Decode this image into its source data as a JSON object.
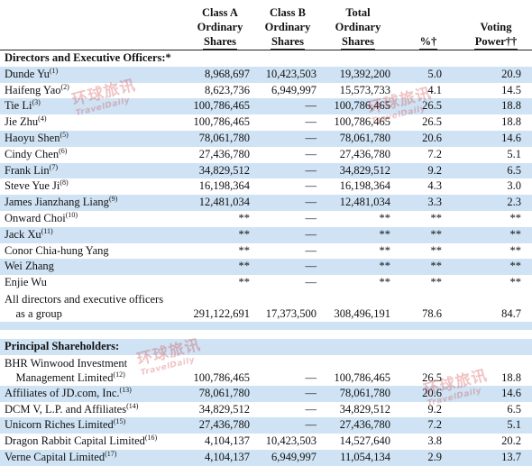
{
  "headers": {
    "class_a": [
      "Class A",
      "Ordinary",
      "Shares"
    ],
    "class_b": [
      "Class B",
      "Ordinary",
      "Shares"
    ],
    "total": [
      "Total",
      "Ordinary",
      "Shares"
    ],
    "pct": "%†",
    "voting": [
      "Voting",
      "Power††"
    ]
  },
  "sections": {
    "directors": "Directors and Executive Officers:*",
    "principal": "Principal Shareholders:"
  },
  "directors": [
    {
      "name": "Dunde Yu",
      "fn": "(1)",
      "a": "8,968,697",
      "b": "10,423,503",
      "total": "19,392,200",
      "pct": "5.0",
      "vote": "20.9"
    },
    {
      "name": "Haifeng Yao",
      "fn": "(2)",
      "a": "8,623,736",
      "b": "6,949,997",
      "total": "15,573,733",
      "pct": "4.1",
      "vote": "14.5"
    },
    {
      "name": "Tie Li",
      "fn": "(3)",
      "a": "100,786,465",
      "b": "—",
      "total": "100,786,465",
      "pct": "26.5",
      "vote": "18.8"
    },
    {
      "name": "Jie Zhu",
      "fn": "(4)",
      "a": "100,786,465",
      "b": "—",
      "total": "100,786,465",
      "pct": "26.5",
      "vote": "18.8"
    },
    {
      "name": "Haoyu Shen",
      "fn": "(5)",
      "a": "78,061,780",
      "b": "—",
      "total": "78,061,780",
      "pct": "20.6",
      "vote": "14.6"
    },
    {
      "name": "Cindy Chen",
      "fn": "(6)",
      "a": "27,436,780",
      "b": "—",
      "total": "27,436,780",
      "pct": "7.2",
      "vote": "5.1"
    },
    {
      "name": "Frank Lin",
      "fn": "(7)",
      "a": "34,829,512",
      "b": "—",
      "total": "34,829,512",
      "pct": "9.2",
      "vote": "6.5"
    },
    {
      "name": "Steve Yue Ji",
      "fn": "(8)",
      "a": "16,198,364",
      "b": "—",
      "total": "16,198,364",
      "pct": "4.3",
      "vote": "3.0"
    },
    {
      "name": "James Jianzhang Liang",
      "fn": "(9)",
      "a": "12,481,034",
      "b": "—",
      "total": "12,481,034",
      "pct": "3.3",
      "vote": "2.3"
    },
    {
      "name": "Onward Choi",
      "fn": "(10)",
      "a": "**",
      "b": "—",
      "total": "**",
      "pct": "**",
      "vote": "**"
    },
    {
      "name": "Jack Xu",
      "fn": "(11)",
      "a": "**",
      "b": "—",
      "total": "**",
      "pct": "**",
      "vote": "**"
    },
    {
      "name": "Conor Chia-hung Yang",
      "fn": "",
      "a": "**",
      "b": "—",
      "total": "**",
      "pct": "**",
      "vote": "**"
    },
    {
      "name": "Wei Zhang",
      "fn": "",
      "a": "**",
      "b": "—",
      "total": "**",
      "pct": "**",
      "vote": "**"
    },
    {
      "name": "Enjie Wu",
      "fn": "",
      "a": "**",
      "b": "—",
      "total": "**",
      "pct": "**",
      "vote": "**"
    }
  ],
  "group_total": {
    "name_line1": "All directors and executive officers",
    "name_line2": "as a group",
    "a": "291,122,691",
    "b": "17,373,500",
    "total": "308,496,191",
    "pct": "78.6",
    "vote": "84.7"
  },
  "principal": [
    {
      "name_line1": "BHR Winwood Investment",
      "name": "Management Limited",
      "fn": "(12)",
      "a": "100,786,465",
      "b": "—",
      "total": "100,786,465",
      "pct": "26.5",
      "vote": "18.8"
    },
    {
      "name": "Affiliates of JD.com, Inc.",
      "fn": "(13)",
      "a": "78,061,780",
      "b": "—",
      "total": "78,061,780",
      "pct": "20.6",
      "vote": "14.6"
    },
    {
      "name": "DCM V, L.P. and Affiliates",
      "fn": "(14)",
      "a": "34,829,512",
      "b": "—",
      "total": "34,829,512",
      "pct": "9.2",
      "vote": "6.5"
    },
    {
      "name": "Unicorn Riches Limited",
      "fn": "(15)",
      "a": "27,436,780",
      "b": "—",
      "total": "27,436,780",
      "pct": "7.2",
      "vote": "5.1"
    },
    {
      "name": "Dragon Rabbit Capital Limited",
      "fn": "(16)",
      "a": "4,104,137",
      "b": "10,423,503",
      "total": "14,527,640",
      "pct": "3.8",
      "vote": "20.2"
    },
    {
      "name": "Verne Capital Limited",
      "fn": "(17)",
      "a": "4,104,137",
      "b": "6,949,997",
      "total": "11,054,134",
      "pct": "2.9",
      "vote": "13.7"
    }
  ],
  "watermark": {
    "cn": "环球旅讯",
    "en": "TravelDaily"
  }
}
